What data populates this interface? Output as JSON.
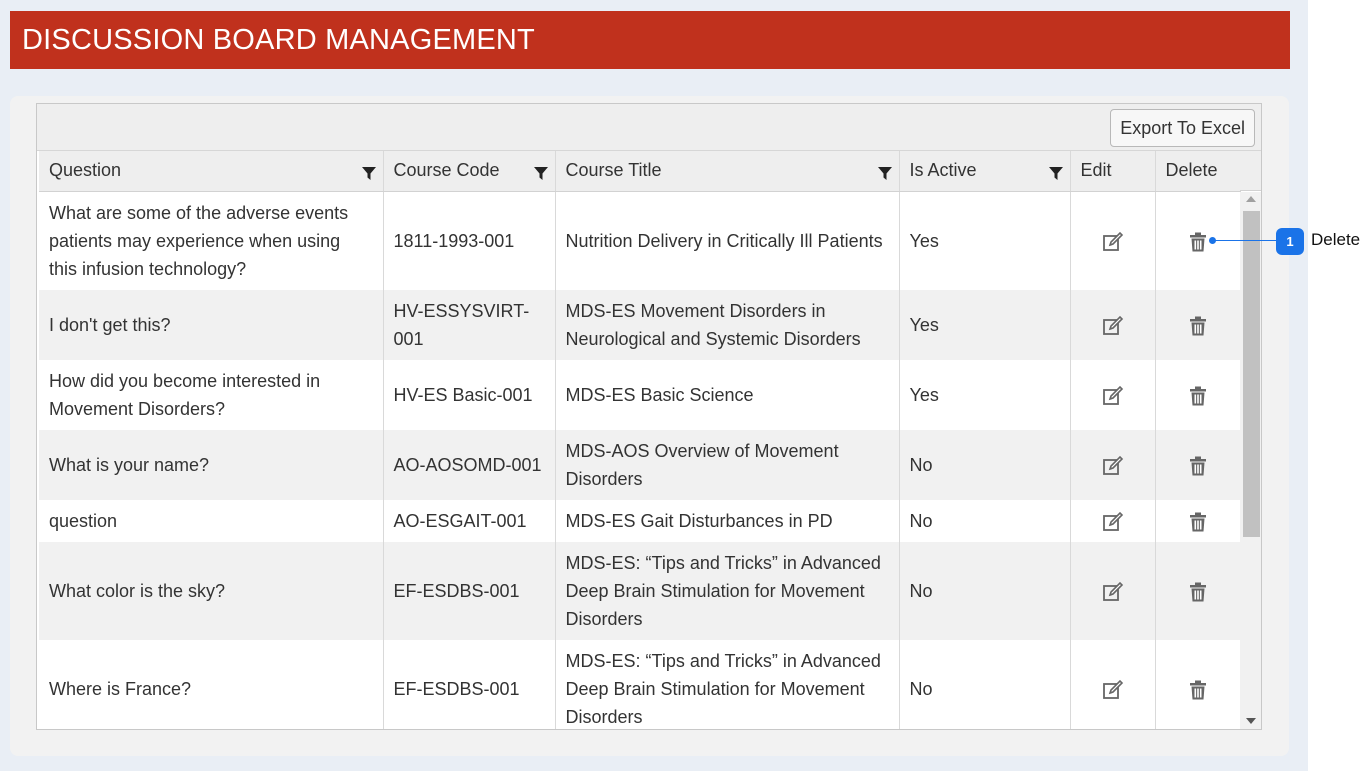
{
  "header": {
    "title": "DISCUSSION BOARD MANAGEMENT"
  },
  "toolbar": {
    "export_label": "Export To Excel"
  },
  "columns": {
    "question": "Question",
    "course_code": "Course Code",
    "course_title": "Course Title",
    "is_active": "Is Active",
    "edit": "Edit",
    "delete": "Delete"
  },
  "rows": [
    {
      "question": "What are some of the adverse events patients may experience when using this infusion technology?",
      "course_code": "1811-1993-001",
      "course_title": "Nutrition Delivery in Critically Ill Patients",
      "is_active": "Yes"
    },
    {
      "question": "I don't get this?",
      "course_code": "HV-ESSYSVIRT-001",
      "course_title": "MDS-ES Movement Disorders in Neurological and Systemic Disorders",
      "is_active": "Yes"
    },
    {
      "question": "How did you become interested in Movement Disorders?",
      "course_code": "HV-ES Basic-001",
      "course_title": "MDS-ES Basic Science",
      "is_active": "Yes"
    },
    {
      "question": "What is your name?",
      "course_code": "AO-AOSOMD-001",
      "course_title": "MDS-AOS Overview of Movement Disorders",
      "is_active": "No"
    },
    {
      "question": "question",
      "course_code": "AO-ESGAIT-001",
      "course_title": "MDS-ES Gait Disturbances in PD",
      "is_active": "No"
    },
    {
      "question": "What color is the sky?",
      "course_code": "EF-ESDBS-001",
      "course_title": "MDS-ES: “Tips and Tricks” in Advanced Deep Brain Stimulation for Movement Disorders",
      "is_active": "No"
    },
    {
      "question": "Where is France?",
      "course_code": "EF-ESDBS-001",
      "course_title": "MDS-ES: “Tips and Tricks” in Advanced Deep Brain Stimulation for Movement Disorders",
      "is_active": "No"
    }
  ],
  "icons": {
    "filter": "filter-icon",
    "edit": "edit-icon",
    "delete": "trash-icon"
  },
  "callout": {
    "number": "1",
    "label": "Delete"
  },
  "colors": {
    "header_bg": "#c0311d",
    "callout": "#1a73e8"
  }
}
